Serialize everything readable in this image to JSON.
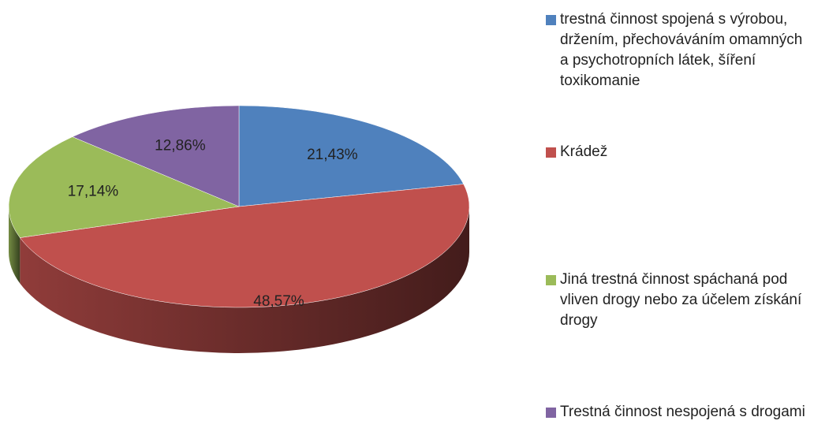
{
  "chart_data": {
    "type": "pie",
    "categories": [
      "trestná činnost spojená s výrobou, držením, přechováváním omamných a psychotropních látek, šíření toxikomanie",
      "Krádež",
      "Jiná trestná činnost spáchaná pod vliven drogy nebo za účelem získání drogy",
      "Trestná činnost nespojená s drogami"
    ],
    "values": [
      21.43,
      48.57,
      17.14,
      12.86
    ],
    "value_labels": [
      "21,43%",
      "48,57%",
      "17,14%",
      "12,86%"
    ],
    "colors": [
      "#4f81bd",
      "#c0504d",
      "#9bbb59",
      "#8064a2"
    ],
    "legend": "right"
  }
}
